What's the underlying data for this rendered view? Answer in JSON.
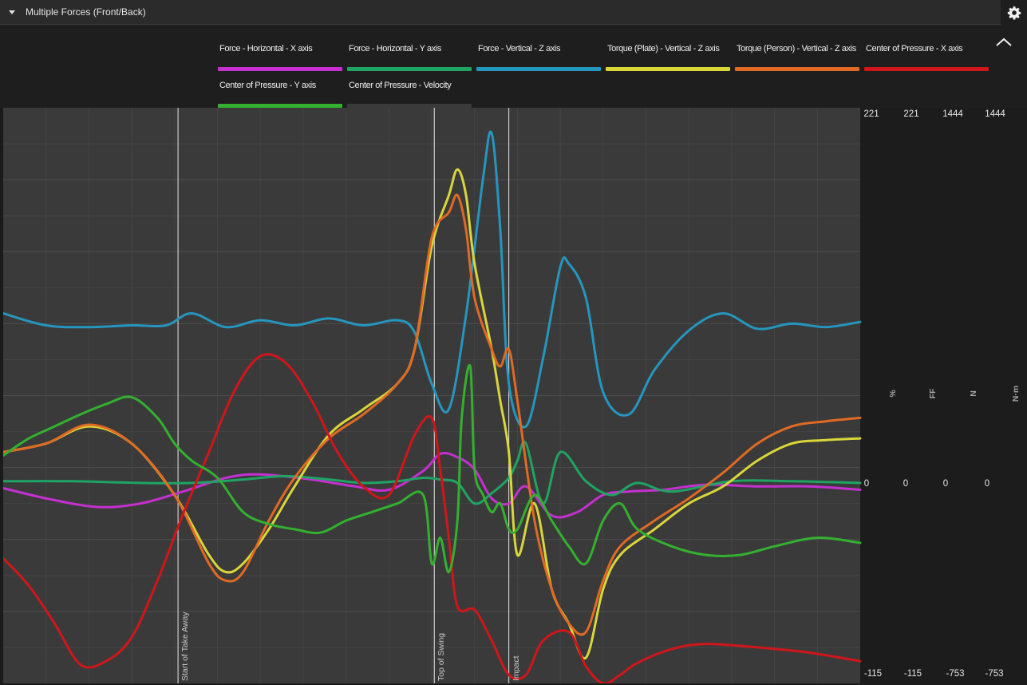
{
  "panel": {
    "title": "Multiple Forces (Front/Back)"
  },
  "icons": {
    "collapse": "caret-down-icon",
    "settings": "gear-icon",
    "legend_collapse": "chevron-up-icon"
  },
  "legend": [
    {
      "label": "Force - Horizontal - X axis",
      "color": "#c530d0"
    },
    {
      "label": "Force - Horizontal - Y axis",
      "color": "#1fa463"
    },
    {
      "label": "Force - Vertical - Z axis",
      "color": "#2596be"
    },
    {
      "label": "Torque (Plate) - Vertical - Z axis",
      "color": "#d9d63a"
    },
    {
      "label": "Torque (Person) - Vertical - Z axis",
      "color": "#e06a24"
    },
    {
      "label": "Center of Pressure - X axis",
      "color": "#d0161a"
    },
    {
      "label": "Center of Pressure - Y axis",
      "color": "#34b030"
    },
    {
      "label": "Center of Pressure - Velocity",
      "color": "#3a3a3a"
    }
  ],
  "axes": [
    {
      "unit": "%",
      "max": "221",
      "zero": "0",
      "min": "-115"
    },
    {
      "unit": "FF",
      "max": "221",
      "zero": "0",
      "min": "-115"
    },
    {
      "unit": "N",
      "max": "1444",
      "zero": "0",
      "min": "-753"
    },
    {
      "unit": "N·m",
      "max": "1444",
      "zero": "0",
      "min": "-753"
    }
  ],
  "events": [
    {
      "label": "Start of Take Away",
      "t": 0.204
    },
    {
      "label": "Top of Swing",
      "t": 0.503
    },
    {
      "label": "Impact",
      "t": 0.59
    }
  ],
  "chart_data": {
    "type": "line",
    "x_range": [
      0,
      1
    ],
    "y_range": [
      -115,
      221
    ],
    "y_unit": "%",
    "series": [
      {
        "name": "Force - Horizontal - X axis",
        "color": "#c530d0",
        "x": [
          0,
          0.05,
          0.11,
          0.16,
          0.21,
          0.26,
          0.3,
          0.36,
          0.41,
          0.45,
          0.49,
          0.51,
          0.53,
          0.55,
          0.57,
          0.59,
          0.61,
          0.64,
          0.67,
          0.7,
          0.73,
          0.77,
          0.82,
          0.88,
          0.94,
          1
        ],
        "y": [
          -1,
          -7,
          -12,
          -10,
          -3,
          5,
          7,
          4,
          0,
          -2,
          9,
          19,
          17,
          10,
          -7,
          -10,
          0,
          -17,
          -15,
          -5,
          -3,
          -2,
          1,
          0,
          0,
          -2
        ]
      },
      {
        "name": "Force - Horizontal - Y axis",
        "color": "#1fa463",
        "x": [
          0,
          0.08,
          0.16,
          0.22,
          0.28,
          0.33,
          0.38,
          0.42,
          0.46,
          0.49,
          0.51,
          0.53,
          0.55,
          0.57,
          0.59,
          0.6,
          0.61,
          0.63,
          0.65,
          0.68,
          0.71,
          0.74,
          0.78,
          0.85,
          0.92,
          1
        ],
        "y": [
          3,
          3,
          2,
          2,
          4,
          6,
          4,
          2,
          3,
          5,
          4,
          2,
          -10,
          -4,
          5,
          15,
          25,
          -10,
          20,
          3,
          -5,
          2,
          -3,
          3,
          3,
          2
        ]
      },
      {
        "name": "Force - Vertical - Z axis",
        "color": "#2596be",
        "x": [
          0,
          0.05,
          0.1,
          0.15,
          0.19,
          0.22,
          0.26,
          0.3,
          0.34,
          0.38,
          0.42,
          0.46,
          0.48,
          0.5,
          0.52,
          0.54,
          0.56,
          0.57,
          0.58,
          0.59,
          0.61,
          0.63,
          0.65,
          0.66,
          0.68,
          0.7,
          0.73,
          0.76,
          0.8,
          0.84,
          0.88,
          0.92,
          0.96,
          1
        ],
        "y": [
          101,
          94,
          93,
          94,
          94,
          101,
          93,
          97,
          94,
          98,
          94,
          97,
          90,
          60,
          45,
          100,
          180,
          206,
          150,
          60,
          35,
          75,
          128,
          130,
          110,
          55,
          42,
          68,
          91,
          101,
          92,
          95,
          93,
          96
        ]
      },
      {
        "name": "Torque (Plate) - Vertical - Z axis",
        "color": "#d9d63a",
        "x": [
          0,
          0.05,
          0.1,
          0.15,
          0.2,
          0.24,
          0.26,
          0.28,
          0.31,
          0.34,
          0.38,
          0.42,
          0.46,
          0.48,
          0.5,
          0.52,
          0.53,
          0.54,
          0.55,
          0.57,
          0.58,
          0.59,
          0.6,
          0.62,
          0.64,
          0.66,
          0.68,
          0.7,
          0.72,
          0.76,
          0.8,
          0.84,
          0.88,
          0.92,
          0.96,
          1
        ],
        "y": [
          20,
          25,
          35,
          25,
          -5,
          -40,
          -50,
          -45,
          -25,
          0,
          30,
          45,
          60,
          80,
          140,
          170,
          185,
          170,
          130,
          80,
          50,
          20,
          -40,
          -10,
          -60,
          -80,
          -100,
          -60,
          -40,
          -25,
          -10,
          0,
          15,
          25,
          27,
          28
        ]
      },
      {
        "name": "Torque (Person) - Vertical - Z axis",
        "color": "#e06a24",
        "x": [
          0,
          0.05,
          0.1,
          0.15,
          0.2,
          0.24,
          0.26,
          0.28,
          0.31,
          0.34,
          0.38,
          0.42,
          0.46,
          0.48,
          0.5,
          0.52,
          0.53,
          0.54,
          0.55,
          0.57,
          0.58,
          0.59,
          0.6,
          0.62,
          0.64,
          0.66,
          0.68,
          0.7,
          0.72,
          0.76,
          0.8,
          0.84,
          0.88,
          0.92,
          0.96,
          1
        ],
        "y": [
          20,
          25,
          36,
          25,
          -5,
          -45,
          -55,
          -50,
          -20,
          5,
          28,
          42,
          60,
          80,
          145,
          160,
          170,
          150,
          110,
          80,
          70,
          80,
          50,
          -20,
          -60,
          -80,
          -85,
          -55,
          -35,
          -20,
          -7,
          8,
          25,
          35,
          38,
          40
        ]
      },
      {
        "name": "Center of Pressure - X axis",
        "color": "#d0161a",
        "x": [
          0,
          0.03,
          0.06,
          0.09,
          0.12,
          0.15,
          0.18,
          0.21,
          0.24,
          0.27,
          0.3,
          0.33,
          0.36,
          0.39,
          0.42,
          0.45,
          0.48,
          0.5,
          0.51,
          0.52,
          0.53,
          0.55,
          0.57,
          0.59,
          0.61,
          0.63,
          0.66,
          0.68,
          0.7,
          0.72,
          0.74,
          0.78,
          0.82,
          0.88,
          0.94,
          1
        ],
        "y": [
          -42,
          -58,
          -80,
          -104,
          -102,
          -88,
          -55,
          -16,
          20,
          56,
          76,
          72,
          50,
          20,
          0,
          -5,
          30,
          40,
          10,
          -30,
          -70,
          -72,
          -90,
          -110,
          -110,
          -90,
          -85,
          -105,
          -115,
          -110,
          -103,
          -95,
          -92,
          -94,
          -97,
          -102
        ]
      },
      {
        "name": "Center of Pressure - Y axis",
        "color": "#34b030",
        "x": [
          0,
          0.03,
          0.06,
          0.09,
          0.12,
          0.15,
          0.18,
          0.2,
          0.22,
          0.25,
          0.28,
          0.31,
          0.34,
          0.37,
          0.4,
          0.43,
          0.46,
          0.49,
          0.5,
          0.51,
          0.52,
          0.53,
          0.535,
          0.545,
          0.55,
          0.56,
          0.57,
          0.58,
          0.59,
          0.6,
          0.62,
          0.64,
          0.66,
          0.68,
          0.7,
          0.72,
          0.74,
          0.78,
          0.82,
          0.86,
          0.9,
          0.95,
          1
        ],
        "y": [
          18,
          28,
          35,
          42,
          48,
          52,
          40,
          25,
          15,
          5,
          -15,
          -22,
          -25,
          -27,
          -20,
          -15,
          -10,
          -5,
          -45,
          -30,
          -50,
          -20,
          40,
          70,
          10,
          -5,
          -15,
          -10,
          -25,
          -25,
          -5,
          -20,
          -35,
          -45,
          -20,
          -10,
          -25,
          -35,
          -40,
          -40,
          -35,
          -30,
          -33
        ]
      },
      {
        "name": "Center of Pressure - Velocity",
        "color": "#3a3a3a",
        "x": [],
        "y": []
      }
    ]
  }
}
